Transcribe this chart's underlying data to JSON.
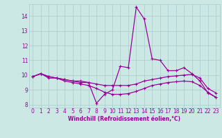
{
  "xlabel": "Windchill (Refroidissement éolien,°C)",
  "background_color": "#cce8e4",
  "grid_color": "#aacccc",
  "line_color": "#990099",
  "xlim": [
    -0.5,
    23.5
  ],
  "ylim": [
    7.8,
    14.8
  ],
  "yticks": [
    8,
    9,
    10,
    11,
    12,
    13,
    14
  ],
  "xticks": [
    0,
    1,
    2,
    3,
    4,
    5,
    6,
    7,
    8,
    9,
    10,
    11,
    12,
    13,
    14,
    15,
    16,
    17,
    18,
    19,
    20,
    21,
    22,
    23
  ],
  "series1_x": [
    0,
    1,
    2,
    3,
    4,
    5,
    6,
    7,
    8,
    9,
    10,
    11,
    12,
    13,
    14,
    15,
    16,
    17,
    18,
    19,
    20,
    21,
    22,
    23
  ],
  "series1_y": [
    9.9,
    10.1,
    9.9,
    9.8,
    9.7,
    9.6,
    9.6,
    9.5,
    8.1,
    8.7,
    9.0,
    10.6,
    10.5,
    14.6,
    13.8,
    11.1,
    11.0,
    10.3,
    10.3,
    10.5,
    10.1,
    9.6,
    8.8,
    8.5
  ],
  "series2_x": [
    0,
    1,
    2,
    3,
    4,
    5,
    6,
    7,
    8,
    9,
    10,
    11,
    12,
    13,
    14,
    15,
    16,
    17,
    18,
    19,
    20,
    21,
    22,
    23
  ],
  "series2_y": [
    9.9,
    10.1,
    9.9,
    9.8,
    9.7,
    9.6,
    9.5,
    9.5,
    9.4,
    9.3,
    9.3,
    9.3,
    9.3,
    9.4,
    9.6,
    9.7,
    9.8,
    9.9,
    9.95,
    10.0,
    10.05,
    9.8,
    9.1,
    8.8
  ],
  "series3_x": [
    0,
    1,
    2,
    3,
    4,
    5,
    6,
    7,
    8,
    9,
    10,
    11,
    12,
    13,
    14,
    15,
    16,
    17,
    18,
    19,
    20,
    21,
    22,
    23
  ],
  "series3_y": [
    9.9,
    10.1,
    9.8,
    9.8,
    9.6,
    9.5,
    9.4,
    9.3,
    9.1,
    8.85,
    8.7,
    8.7,
    8.75,
    8.9,
    9.1,
    9.3,
    9.4,
    9.5,
    9.55,
    9.6,
    9.55,
    9.3,
    8.85,
    8.5
  ],
  "tick_fontsize": 5.5,
  "xlabel_fontsize": 5.5
}
